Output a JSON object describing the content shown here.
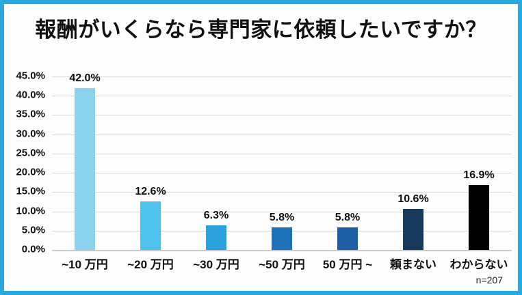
{
  "frame": {
    "border_color": "#29a8e0",
    "background_color": "#fdfdfd"
  },
  "title": "報酬がいくらなら専門家に依頼したいですか？",
  "note": "n=207",
  "chart_data": {
    "type": "bar",
    "title": "報酬がいくらなら専門家に依頼したいですか？",
    "categories": [
      "~10 万円",
      "~20 万円",
      "~30 万円",
      "~50 万円",
      "50 万円 ~",
      "頼まない",
      "わからない"
    ],
    "values": [
      42.0,
      12.6,
      6.3,
      5.8,
      5.8,
      10.6,
      16.9
    ],
    "value_labels": [
      "42.0%",
      "12.6%",
      "6.3%",
      "5.8%",
      "5.8%",
      "10.6%",
      "16.9%"
    ],
    "bar_colors": [
      "#8ad3f0",
      "#4fc2ed",
      "#2aa1dc",
      "#1d71b8",
      "#1c5fa6",
      "#17395e",
      "#000000"
    ],
    "xlabel": "",
    "ylabel": "",
    "ylim": [
      0,
      45
    ],
    "ytick_step": 5,
    "ytick_labels": [
      "0.0%",
      "5.0%",
      "10.0%",
      "15.0%",
      "20.0%",
      "25.0%",
      "30.0%",
      "35.0%",
      "40.0%",
      "45.0%"
    ],
    "grid": true,
    "legend": false,
    "annotations": [
      "n=207"
    ]
  }
}
